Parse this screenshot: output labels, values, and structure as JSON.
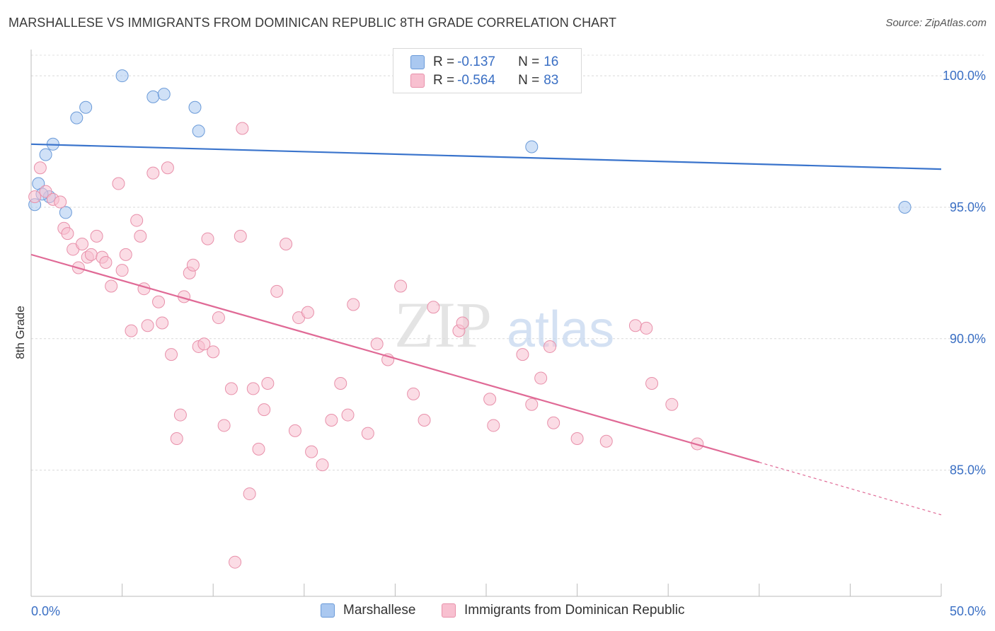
{
  "title": "MARSHALLESE VS IMMIGRANTS FROM DOMINICAN REPUBLIC 8TH GRADE CORRELATION CHART",
  "source": "Source: ZipAtlas.com",
  "watermark": {
    "zip": "ZIP",
    "atlas": "atlas"
  },
  "legend_top": {
    "rows": [
      {
        "r_label": "R = ",
        "r_value": "-0.137",
        "n_label": "N = ",
        "n_value": "16",
        "color": "#aac8f0",
        "stroke": "#6a9ad8"
      },
      {
        "r_label": "R = ",
        "r_value": "-0.564",
        "n_label": "N = ",
        "n_value": "83",
        "color": "#f8c0d0",
        "stroke": "#e890aa"
      }
    ]
  },
  "legend_bottom": [
    {
      "label": "Marshallese",
      "color": "#aac8f0",
      "stroke": "#6a9ad8"
    },
    {
      "label": "Immigrants from Dominican Republic",
      "color": "#f8c0d0",
      "stroke": "#e890aa"
    }
  ],
  "chart_data": {
    "type": "scatter",
    "title": "MARSHALLESE VS IMMIGRANTS FROM DOMINICAN REPUBLIC 8TH GRADE CORRELATION CHART",
    "xlabel": "",
    "ylabel": "8th Grade",
    "xlim": [
      0,
      50
    ],
    "ylim": [
      80.2,
      101.0
    ],
    "x_tick_labels": [
      {
        "value": 0,
        "label": "0.0%"
      },
      {
        "value": 50,
        "label": "50.0%"
      }
    ],
    "y_tick_labels": [
      {
        "value": 100,
        "label": "100.0%"
      },
      {
        "value": 95,
        "label": "95.0%"
      },
      {
        "value": 90,
        "label": "90.0%"
      },
      {
        "value": 85,
        "label": "85.0%"
      }
    ],
    "x_minor_ticks": [
      0,
      5,
      10,
      15,
      20,
      25,
      30,
      35,
      40,
      45,
      50
    ],
    "series": [
      {
        "name": "Marshallese",
        "color": "#aac8f0",
        "stroke": "#6a9ad8",
        "line_color": "#3a74cc",
        "trend": {
          "x0": 0,
          "y0": 97.4,
          "x1": 50,
          "y1": 96.45
        },
        "points": [
          [
            0.2,
            95.1
          ],
          [
            0.4,
            95.9
          ],
          [
            0.8,
            97.0
          ],
          [
            1.0,
            95.4
          ],
          [
            1.2,
            97.4
          ],
          [
            1.9,
            94.8
          ],
          [
            2.5,
            98.4
          ],
          [
            3.0,
            98.8
          ],
          [
            5.0,
            100.0
          ],
          [
            6.7,
            99.2
          ],
          [
            7.3,
            99.3
          ],
          [
            9.0,
            98.8
          ],
          [
            9.2,
            97.9
          ],
          [
            27.5,
            97.3
          ],
          [
            48.0,
            95.0
          ],
          [
            0.6,
            95.5
          ]
        ]
      },
      {
        "name": "Immigrants from Dominican Republic",
        "color": "#f8c0d0",
        "stroke": "#e890aa",
        "line_color": "#e06a96",
        "trend": {
          "x0": 0,
          "y0": 93.2,
          "x1": 40,
          "y1": 85.3
        },
        "trend_dash": {
          "x0": 40,
          "y0": 85.3,
          "x1": 50,
          "y1": 83.3
        },
        "points": [
          [
            0.2,
            95.4
          ],
          [
            0.5,
            96.5
          ],
          [
            0.8,
            95.6
          ],
          [
            1.2,
            95.3
          ],
          [
            1.6,
            95.2
          ],
          [
            1.8,
            94.2
          ],
          [
            2.0,
            94.0
          ],
          [
            2.3,
            93.4
          ],
          [
            2.6,
            92.7
          ],
          [
            2.8,
            93.6
          ],
          [
            3.1,
            93.1
          ],
          [
            3.3,
            93.2
          ],
          [
            3.6,
            93.9
          ],
          [
            3.9,
            93.1
          ],
          [
            4.1,
            92.9
          ],
          [
            4.4,
            92.0
          ],
          [
            4.8,
            95.9
          ],
          [
            5.0,
            92.6
          ],
          [
            5.2,
            93.2
          ],
          [
            5.5,
            90.3
          ],
          [
            5.8,
            94.5
          ],
          [
            6.0,
            93.9
          ],
          [
            6.2,
            91.9
          ],
          [
            6.4,
            90.5
          ],
          [
            6.7,
            96.3
          ],
          [
            7.0,
            91.4
          ],
          [
            7.2,
            90.6
          ],
          [
            7.5,
            96.5
          ],
          [
            7.7,
            89.4
          ],
          [
            8.0,
            86.2
          ],
          [
            8.2,
            87.1
          ],
          [
            8.4,
            91.6
          ],
          [
            8.7,
            92.5
          ],
          [
            8.9,
            92.8
          ],
          [
            9.2,
            89.7
          ],
          [
            9.5,
            89.8
          ],
          [
            9.7,
            93.8
          ],
          [
            10.0,
            89.5
          ],
          [
            10.3,
            90.8
          ],
          [
            10.6,
            86.7
          ],
          [
            11.0,
            88.1
          ],
          [
            11.2,
            81.5
          ],
          [
            11.5,
            93.9
          ],
          [
            11.6,
            98.0
          ],
          [
            12.0,
            84.1
          ],
          [
            12.2,
            88.1
          ],
          [
            12.5,
            85.8
          ],
          [
            12.8,
            87.3
          ],
          [
            13.0,
            88.3
          ],
          [
            13.5,
            91.8
          ],
          [
            14.0,
            93.6
          ],
          [
            14.5,
            86.5
          ],
          [
            14.7,
            90.8
          ],
          [
            15.2,
            91.0
          ],
          [
            15.4,
            85.7
          ],
          [
            16.0,
            85.2
          ],
          [
            16.5,
            86.9
          ],
          [
            17.0,
            88.3
          ],
          [
            17.4,
            87.1
          ],
          [
            17.7,
            91.3
          ],
          [
            18.5,
            86.4
          ],
          [
            19.0,
            89.8
          ],
          [
            19.6,
            89.2
          ],
          [
            20.3,
            92.0
          ],
          [
            21.0,
            87.9
          ],
          [
            21.6,
            86.9
          ],
          [
            22.1,
            91.2
          ],
          [
            23.5,
            90.3
          ],
          [
            23.7,
            90.6
          ],
          [
            25.2,
            87.7
          ],
          [
            25.4,
            86.7
          ],
          [
            27.0,
            89.4
          ],
          [
            27.5,
            87.5
          ],
          [
            28.0,
            88.5
          ],
          [
            28.5,
            89.7
          ],
          [
            28.7,
            86.8
          ],
          [
            30.0,
            86.2
          ],
          [
            31.6,
            86.1
          ],
          [
            33.2,
            90.5
          ],
          [
            33.8,
            90.4
          ],
          [
            34.1,
            88.3
          ],
          [
            35.2,
            87.5
          ],
          [
            36.6,
            86.0
          ]
        ]
      }
    ],
    "grid": "horizontal dashed"
  }
}
